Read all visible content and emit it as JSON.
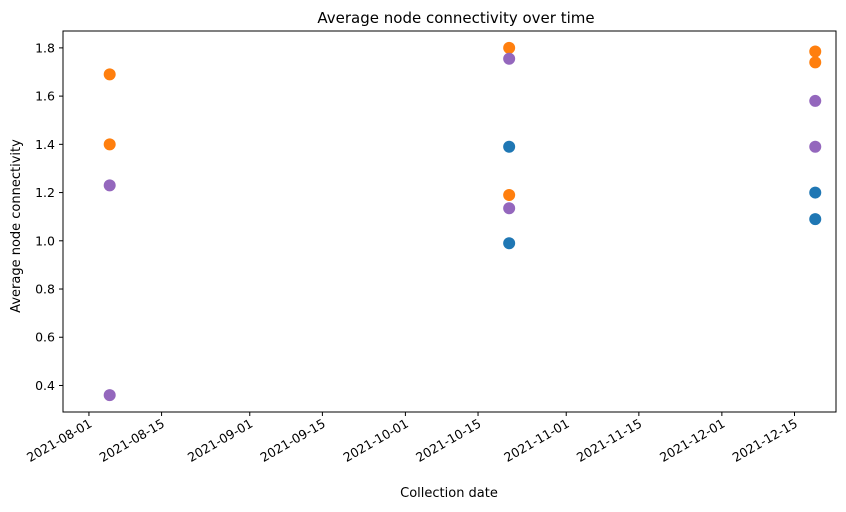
{
  "chart_data": {
    "type": "scatter",
    "title": "Average node connectivity over time",
    "xlabel": "Collection date",
    "ylabel": "Average node connectivity",
    "xlim": [
      "2021-07-27",
      "2021-12-23"
    ],
    "ylim": [
      0.29,
      1.87
    ],
    "x_ticks": [
      "2021-08-01",
      "2021-08-15",
      "2021-09-01",
      "2021-09-15",
      "2021-10-01",
      "2021-10-15",
      "2021-11-01",
      "2021-11-15",
      "2021-12-01",
      "2021-12-15"
    ],
    "y_ticks": [
      "0.4",
      "0.6",
      "0.8",
      "1.0",
      "1.2",
      "1.4",
      "1.6",
      "1.8"
    ],
    "x_tick_rotation": 30,
    "grid": false,
    "legend": "none",
    "series": [
      {
        "color": "#1f77b4",
        "points": [
          {
            "x": "2021-10-21",
            "y": 1.39
          },
          {
            "x": "2021-10-21",
            "y": 0.99
          },
          {
            "x": "2021-12-19",
            "y": 1.2
          },
          {
            "x": "2021-12-19",
            "y": 1.09
          }
        ]
      },
      {
        "color": "#ff7f0e",
        "points": [
          {
            "x": "2021-08-05",
            "y": 1.69
          },
          {
            "x": "2021-08-05",
            "y": 1.4
          },
          {
            "x": "2021-10-21",
            "y": 1.8
          },
          {
            "x": "2021-10-21",
            "y": 1.19
          },
          {
            "x": "2021-12-19",
            "y": 1.785
          },
          {
            "x": "2021-12-19",
            "y": 1.74
          }
        ]
      },
      {
        "color": "#9467bd",
        "points": [
          {
            "x": "2021-08-05",
            "y": 1.23
          },
          {
            "x": "2021-08-05",
            "y": 0.36
          },
          {
            "x": "2021-10-21",
            "y": 1.755
          },
          {
            "x": "2021-10-21",
            "y": 1.135
          },
          {
            "x": "2021-12-19",
            "y": 1.58
          },
          {
            "x": "2021-12-19",
            "y": 1.39
          }
        ]
      }
    ]
  }
}
